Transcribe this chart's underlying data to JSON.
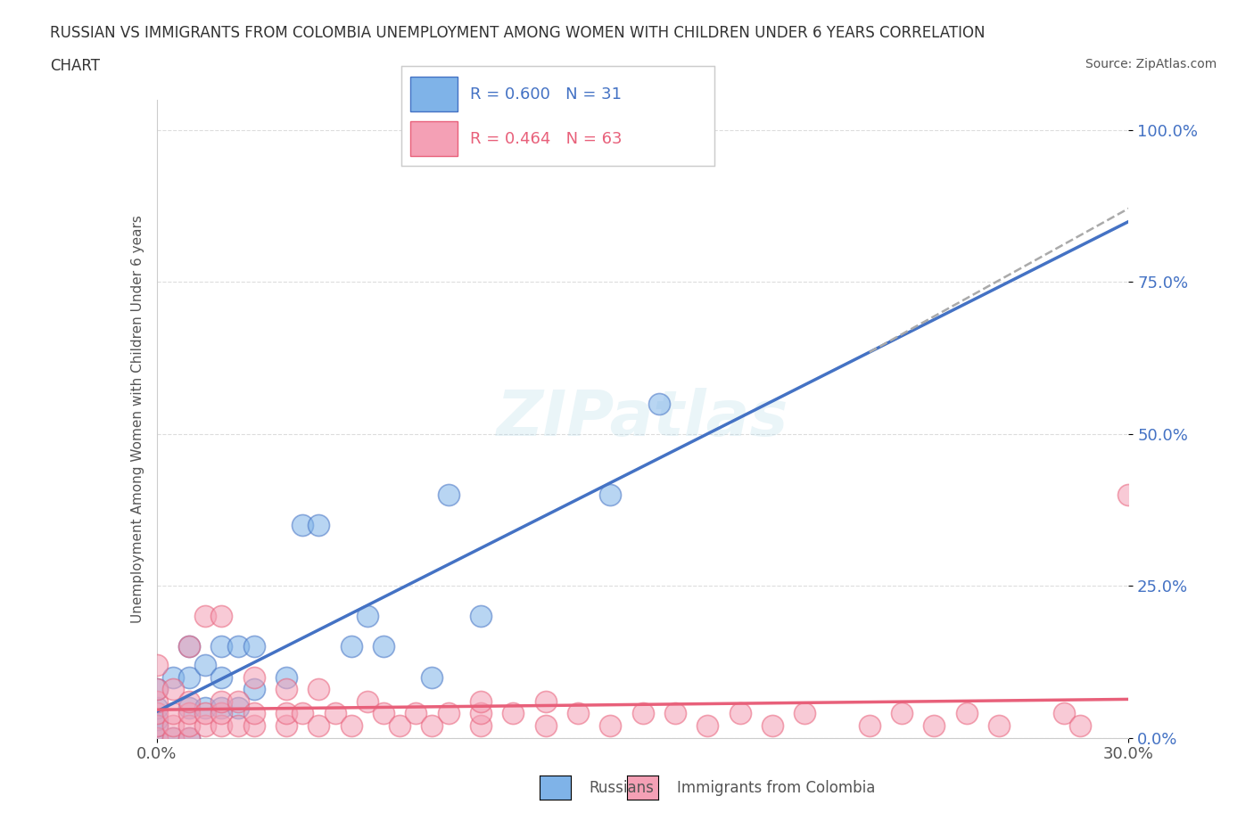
{
  "title_line1": "RUSSIAN VS IMMIGRANTS FROM COLOMBIA UNEMPLOYMENT AMONG WOMEN WITH CHILDREN UNDER 6 YEARS CORRELATION",
  "title_line2": "CHART",
  "source": "Source: ZipAtlas.com",
  "xlabel_ticks": [
    "0.0%",
    "30.0%"
  ],
  "ylabel_ticks": [
    "0.0%",
    "25.0%",
    "50.0%",
    "75.0%",
    "100.0%"
  ],
  "ylabel_tick_vals": [
    0,
    0.25,
    0.5,
    0.75,
    1.0
  ],
  "xlim": [
    0,
    0.3
  ],
  "ylim": [
    0,
    1.05
  ],
  "legend_r1": "R = 0.600",
  "legend_n1": "N = 31",
  "legend_r2": "R = 0.464",
  "legend_n2": "N = 63",
  "color_russian": "#7FB3E8",
  "color_colombia": "#F4A0B5",
  "color_russian_line": "#4472C4",
  "color_colombia_line": "#E8607A",
  "color_dashed": "#AAAAAA",
  "background_color": "#FFFFFF",
  "watermark": "ZIPatlas",
  "russians_x": [
    0.0,
    0.0,
    0.0,
    0.0,
    0.0,
    0.005,
    0.005,
    0.01,
    0.01,
    0.01,
    0.01,
    0.015,
    0.015,
    0.02,
    0.02,
    0.02,
    0.025,
    0.025,
    0.03,
    0.03,
    0.04,
    0.045,
    0.05,
    0.06,
    0.065,
    0.07,
    0.085,
    0.09,
    0.1,
    0.14,
    0.155
  ],
  "russians_y": [
    0.0,
    0.02,
    0.03,
    0.05,
    0.08,
    0.0,
    0.1,
    0.0,
    0.05,
    0.1,
    0.15,
    0.05,
    0.12,
    0.05,
    0.1,
    0.15,
    0.05,
    0.15,
    0.08,
    0.15,
    0.1,
    0.35,
    0.35,
    0.15,
    0.2,
    0.15,
    0.1,
    0.4,
    0.2,
    0.4,
    0.55
  ],
  "colombia_x": [
    0.0,
    0.0,
    0.0,
    0.0,
    0.0,
    0.0,
    0.005,
    0.005,
    0.005,
    0.005,
    0.01,
    0.01,
    0.01,
    0.01,
    0.01,
    0.015,
    0.015,
    0.015,
    0.02,
    0.02,
    0.02,
    0.02,
    0.025,
    0.025,
    0.03,
    0.03,
    0.03,
    0.04,
    0.04,
    0.04,
    0.045,
    0.05,
    0.05,
    0.055,
    0.06,
    0.065,
    0.07,
    0.075,
    0.08,
    0.085,
    0.09,
    0.1,
    0.1,
    0.1,
    0.11,
    0.12,
    0.12,
    0.13,
    0.14,
    0.15,
    0.16,
    0.17,
    0.18,
    0.19,
    0.2,
    0.22,
    0.23,
    0.24,
    0.25,
    0.26,
    0.28,
    0.285,
    0.3
  ],
  "colombia_y": [
    0.0,
    0.02,
    0.04,
    0.06,
    0.08,
    0.12,
    0.0,
    0.02,
    0.04,
    0.08,
    0.0,
    0.02,
    0.04,
    0.06,
    0.15,
    0.02,
    0.04,
    0.2,
    0.02,
    0.04,
    0.06,
    0.2,
    0.02,
    0.06,
    0.02,
    0.04,
    0.1,
    0.02,
    0.04,
    0.08,
    0.04,
    0.02,
    0.08,
    0.04,
    0.02,
    0.06,
    0.04,
    0.02,
    0.04,
    0.02,
    0.04,
    0.02,
    0.04,
    0.06,
    0.04,
    0.02,
    0.06,
    0.04,
    0.02,
    0.04,
    0.04,
    0.02,
    0.04,
    0.02,
    0.04,
    0.02,
    0.04,
    0.02,
    0.04,
    0.02,
    0.04,
    0.02,
    0.4
  ]
}
